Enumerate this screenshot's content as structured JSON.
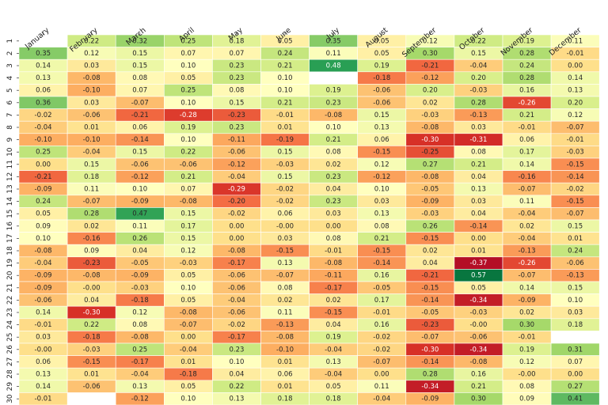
{
  "chart_data": {
    "type": "heatmap",
    "colormap": "RdYlGn",
    "vmin": -0.4,
    "vmax": 0.6,
    "columns": [
      "January",
      "February",
      "March",
      "April",
      "May",
      "June",
      "July",
      "August",
      "September",
      "October",
      "November",
      "December"
    ],
    "rows": [
      "1",
      "2",
      "3",
      "4",
      "5",
      "6",
      "7",
      "8",
      "9",
      "10",
      "11",
      "12",
      "13",
      "14",
      "15",
      "16",
      "17",
      "18",
      "19",
      "20",
      "21",
      "22",
      "23",
      "24",
      "25",
      "26",
      "27",
      "28",
      "29",
      "30"
    ],
    "values": [
      [
        null,
        "0.22",
        "0.32",
        "0.25",
        "0.18",
        "0.05",
        "0.35",
        "0.05",
        "0.12",
        "0.22",
        "0.19",
        "0.11"
      ],
      [
        "0.35",
        "0.12",
        "0.15",
        "0.07",
        "0.07",
        "0.24",
        "0.11",
        "0.05",
        "0.30",
        "0.15",
        "0.28",
        "-0.01"
      ],
      [
        "0.14",
        "0.03",
        "0.15",
        "0.10",
        "0.23",
        "0.21",
        "0.48",
        "0.19",
        "-0.21",
        "-0.04",
        "0.24",
        "0.00"
      ],
      [
        "0.13",
        "-0.08",
        "0.08",
        "0.05",
        "0.23",
        "0.10",
        null,
        "-0.18",
        "-0.12",
        "0.20",
        "0.28",
        "0.14"
      ],
      [
        "0.06",
        "-0.10",
        "0.07",
        "0.25",
        "0.08",
        "0.10",
        "0.19",
        "-0.06",
        "0.20",
        "-0.03",
        "0.16",
        "0.13"
      ],
      [
        "0.36",
        "0.03",
        "-0.07",
        "0.10",
        "0.15",
        "0.21",
        "0.23",
        "-0.06",
        "0.02",
        "0.28",
        "-0.26",
        "0.20"
      ],
      [
        "-0.02",
        "-0.06",
        "-0.21",
        "-0.28",
        "-0.23",
        "-0.01",
        "-0.08",
        "0.15",
        "-0.03",
        "-0.13",
        "0.21",
        "0.12"
      ],
      [
        "-0.04",
        "0.01",
        "0.06",
        "0.19",
        "0.23",
        "0.01",
        "0.10",
        "0.13",
        "-0.08",
        "0.03",
        "-0.01",
        "-0.07"
      ],
      [
        "-0.10",
        "-0.10",
        "-0.14",
        "0.10",
        "-0.11",
        "-0.19",
        "0.21",
        "0.06",
        "-0.30",
        "-0.31",
        "0.06",
        "-0.01"
      ],
      [
        "0.25",
        "-0.04",
        "0.15",
        "0.22",
        "-0.06",
        "0.15",
        "0.08",
        "-0.15",
        "-0.25",
        "0.08",
        "0.17",
        "-0.03"
      ],
      [
        "0.00",
        "0.15",
        "-0.06",
        "-0.06",
        "-0.12",
        "-0.03",
        "0.02",
        "0.12",
        "0.27",
        "0.21",
        "0.14",
        "-0.15"
      ],
      [
        "-0.21",
        "0.18",
        "-0.12",
        "0.21",
        "-0.04",
        "0.15",
        "0.23",
        "-0.12",
        "-0.08",
        "0.04",
        "-0.16",
        "-0.14"
      ],
      [
        "-0.09",
        "0.11",
        "0.10",
        "0.07",
        "-0.29",
        "-0.02",
        "0.04",
        "0.10",
        "-0.05",
        "0.13",
        "-0.07",
        "-0.02"
      ],
      [
        "0.24",
        "-0.07",
        "-0.09",
        "-0.08",
        "-0.20",
        "-0.02",
        "0.23",
        "0.03",
        "-0.09",
        "0.03",
        "0.11",
        "-0.15"
      ],
      [
        "0.05",
        "0.28",
        "0.47",
        "0.15",
        "-0.02",
        "0.06",
        "0.03",
        "0.13",
        "-0.03",
        "0.04",
        "-0.04",
        "-0.07"
      ],
      [
        "0.09",
        "0.02",
        "0.11",
        "0.17",
        "0.00",
        "-0.00",
        "0.00",
        "0.08",
        "0.26",
        "-0.14",
        "0.02",
        "0.15"
      ],
      [
        "0.10",
        "-0.16",
        "0.26",
        "0.15",
        "0.00",
        "0.03",
        "0.08",
        "0.21",
        "-0.15",
        "0.00",
        "-0.04",
        "0.01"
      ],
      [
        "-0.08",
        "0.09",
        "0.04",
        "0.12",
        "-0.08",
        "-0.15",
        "-0.01",
        "-0.15",
        "0.02",
        "0.01",
        "-0.13",
        "0.24"
      ],
      [
        "-0.04",
        "-0.23",
        "-0.05",
        "-0.03",
        "-0.17",
        "0.13",
        "-0.08",
        "-0.14",
        "0.04",
        "-0.37",
        "-0.26",
        "-0.06"
      ],
      [
        "-0.09",
        "-0.08",
        "-0.09",
        "0.05",
        "-0.06",
        "-0.07",
        "-0.11",
        "0.16",
        "-0.21",
        "0.57",
        "-0.07",
        "-0.13"
      ],
      [
        "-0.09",
        "-0.00",
        "-0.03",
        "0.10",
        "-0.06",
        "0.08",
        "-0.17",
        "-0.05",
        "-0.15",
        "0.05",
        "0.14",
        "0.15"
      ],
      [
        "-0.06",
        "0.04",
        "-0.18",
        "0.05",
        "-0.04",
        "0.02",
        "0.02",
        "0.17",
        "-0.14",
        "-0.34",
        "-0.09",
        "0.10"
      ],
      [
        "0.14",
        "-0.30",
        "0.12",
        "-0.08",
        "-0.06",
        "0.11",
        "-0.15",
        "-0.01",
        "-0.05",
        "-0.03",
        "0.02",
        "0.03"
      ],
      [
        "-0.01",
        "0.22",
        "0.08",
        "-0.07",
        "-0.02",
        "-0.13",
        "0.04",
        "0.16",
        "-0.23",
        "-0.00",
        "0.30",
        "0.18"
      ],
      [
        "0.03",
        "-0.18",
        "-0.08",
        "0.00",
        "-0.17",
        "-0.08",
        "0.19",
        "-0.02",
        "-0.07",
        "-0.06",
        "-0.01",
        null
      ],
      [
        "-0.00",
        "-0.03",
        "0.25",
        "-0.04",
        "0.23",
        "-0.10",
        "-0.04",
        "-0.02",
        "-0.30",
        "-0.34",
        "0.19",
        "0.31"
      ],
      [
        "0.06",
        "-0.15",
        "-0.17",
        "0.01",
        "0.10",
        "0.01",
        "0.13",
        "-0.07",
        "-0.14",
        "-0.08",
        "0.12",
        "0.07"
      ],
      [
        "0.13",
        "0.01",
        "-0.04",
        "-0.18",
        "0.04",
        "0.06",
        "-0.04",
        "0.00",
        "0.28",
        "0.16",
        "-0.00",
        "0.00"
      ],
      [
        "0.14",
        "-0.06",
        "0.13",
        "0.05",
        "0.22",
        "0.01",
        "0.05",
        "0.11",
        "-0.34",
        "0.21",
        "0.08",
        "0.27"
      ],
      [
        "-0.01",
        null,
        "-0.12",
        "0.10",
        "0.13",
        "0.18",
        "0.18",
        "-0.04",
        "-0.09",
        "0.30",
        "0.09",
        "0.41"
      ]
    ]
  }
}
